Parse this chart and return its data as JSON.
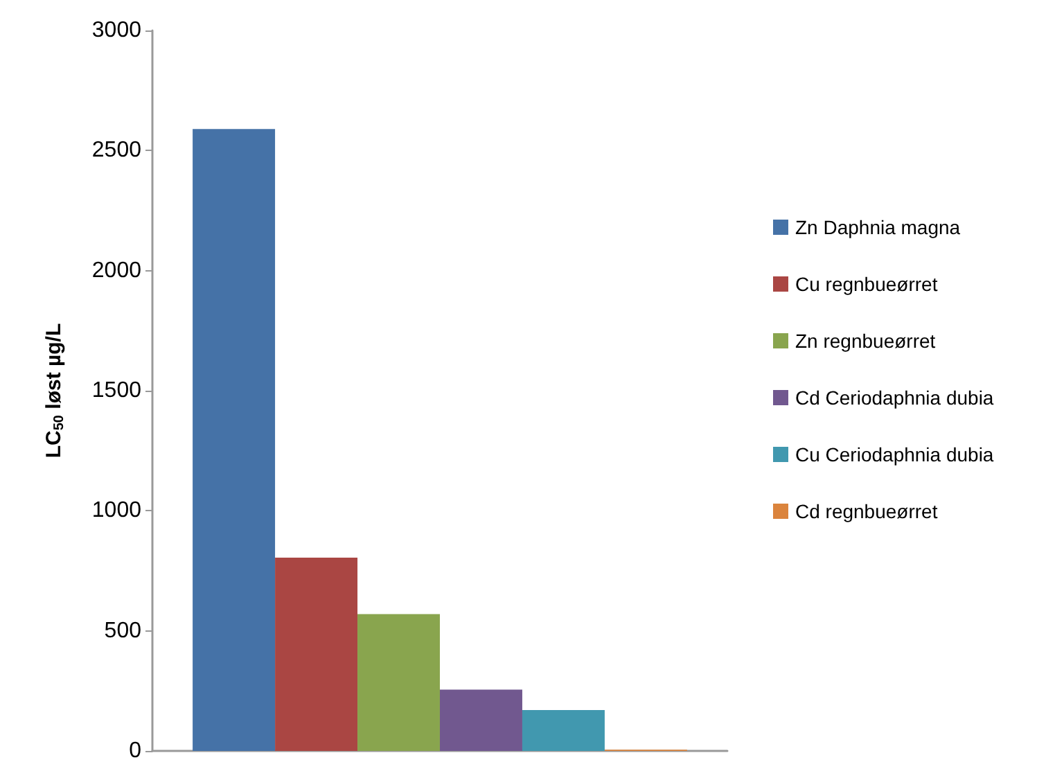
{
  "chart_data": {
    "type": "bar",
    "ylabel": "LC$_{50}$ løst µg/L",
    "categories": [
      null
    ],
    "series": [
      {
        "name": "Zn Daphnia magna",
        "color": "#4572a7",
        "values": [
          2590
        ]
      },
      {
        "name": "Cu regnbueørret",
        "color": "#aa4643",
        "values": [
          805
        ]
      },
      {
        "name": "Zn regnbueørret",
        "color": "#89a54e",
        "values": [
          570
        ]
      },
      {
        "name": "Cd Ceriodaphnia dubia",
        "color": "#71588f",
        "values": [
          255
        ]
      },
      {
        "name": "Cu Ceriodaphnia dubia",
        "color": "#4198af",
        "values": [
          170
        ]
      },
      {
        "name": "Cd regnbueørret",
        "color": "#db843d",
        "values": [
          5
        ]
      }
    ],
    "ylim": [
      0,
      3000
    ],
    "yticks": [
      0,
      500,
      1000,
      1500,
      2000,
      2500,
      3000
    ],
    "grid": false,
    "legend": "right"
  }
}
